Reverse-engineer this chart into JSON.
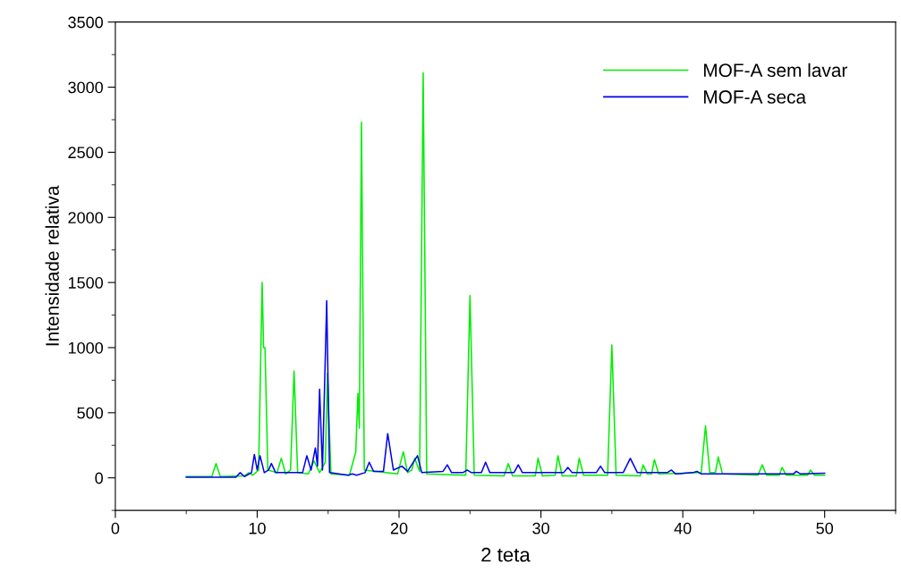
{
  "chart_data": {
    "type": "line",
    "xlabel": "2 teta",
    "ylabel": "Intensidade relativa",
    "xlim": [
      0,
      55
    ],
    "ylim": [
      -250,
      3500
    ],
    "xticks": [
      0,
      10,
      20,
      30,
      40,
      50
    ],
    "yticks": [
      0,
      500,
      1000,
      1500,
      2000,
      2500,
      3000,
      3500
    ],
    "grid": false,
    "legend": "top right",
    "marker": "none",
    "line_style": "solid",
    "series": [
      {
        "name": "MOF-A sem lavar",
        "color": "#00ee00",
        "x": [
          5,
          6.8,
          7.1,
          7.4,
          9.1,
          9.4,
          9.7,
          10.1,
          10.35,
          10.45,
          10.55,
          10.75,
          11.4,
          11.7,
          12.0,
          12.35,
          12.6,
          12.85,
          13.6,
          14.0,
          14.4,
          14.8,
          14.95,
          15.2,
          16.5,
          16.95,
          17.1,
          17.2,
          17.35,
          17.55,
          19.9,
          20.3,
          20.6,
          20.9,
          21.1,
          21.45,
          21.7,
          21.95,
          24.7,
          25.0,
          25.3,
          27.4,
          27.7,
          28.0,
          29.6,
          29.8,
          30.1,
          31.0,
          31.2,
          31.5,
          32.5,
          32.7,
          33.0,
          34.7,
          35.0,
          35.3,
          37.0,
          37.2,
          37.5,
          37.8,
          38.0,
          38.3,
          41.3,
          41.6,
          41.9,
          42.3,
          42.5,
          42.8,
          45.3,
          45.6,
          45.9,
          46.8,
          47.0,
          47.3,
          48.8,
          49.0,
          49.3,
          50
        ],
        "values": [
          10,
          10,
          110,
          10,
          15,
          40,
          20,
          60,
          1500,
          1000,
          1000,
          60,
          40,
          150,
          30,
          60,
          820,
          40,
          30,
          130,
          40,
          120,
          800,
          30,
          20,
          200,
          650,
          380,
          2730,
          60,
          30,
          200,
          40,
          60,
          150,
          50,
          3110,
          30,
          20,
          1400,
          20,
          15,
          110,
          15,
          15,
          150,
          15,
          20,
          170,
          15,
          15,
          150,
          20,
          20,
          1020,
          20,
          15,
          100,
          30,
          30,
          140,
          30,
          40,
          400,
          40,
          40,
          160,
          30,
          20,
          100,
          20,
          20,
          80,
          20,
          20,
          60,
          20,
          20
        ]
      },
      {
        "name": "MOF-A seca",
        "color": "#0000ee",
        "x": [
          5,
          8.5,
          8.8,
          9.1,
          9.6,
          9.8,
          10.0,
          10.2,
          10.5,
          10.8,
          11.0,
          11.3,
          13.2,
          13.5,
          13.8,
          14.1,
          14.25,
          14.4,
          14.6,
          14.9,
          15.1,
          16.4,
          16.7,
          17.0,
          17.6,
          17.9,
          18.2,
          18.9,
          19.2,
          19.6,
          20.2,
          20.6,
          21.3,
          21.6,
          23.1,
          23.4,
          23.7,
          24.5,
          24.8,
          25.1,
          25.8,
          26.1,
          26.4,
          28.1,
          28.4,
          28.7,
          31.6,
          31.9,
          32.2,
          33.9,
          34.2,
          34.5,
          35.8,
          36.3,
          36.8,
          38.9,
          39.2,
          39.5,
          40.7,
          41.0,
          41.3,
          47.8,
          48.0,
          48.3,
          50
        ],
        "values": [
          5,
          5,
          40,
          10,
          40,
          180,
          60,
          170,
          40,
          60,
          110,
          40,
          40,
          170,
          60,
          230,
          90,
          680,
          60,
          1360,
          40,
          20,
          30,
          20,
          40,
          120,
          50,
          50,
          340,
          60,
          90,
          50,
          170,
          40,
          50,
          100,
          40,
          40,
          60,
          40,
          40,
          120,
          40,
          40,
          100,
          40,
          40,
          80,
          40,
          40,
          90,
          40,
          40,
          150,
          40,
          40,
          60,
          30,
          40,
          50,
          30,
          30,
          50,
          30,
          35
        ]
      }
    ]
  }
}
